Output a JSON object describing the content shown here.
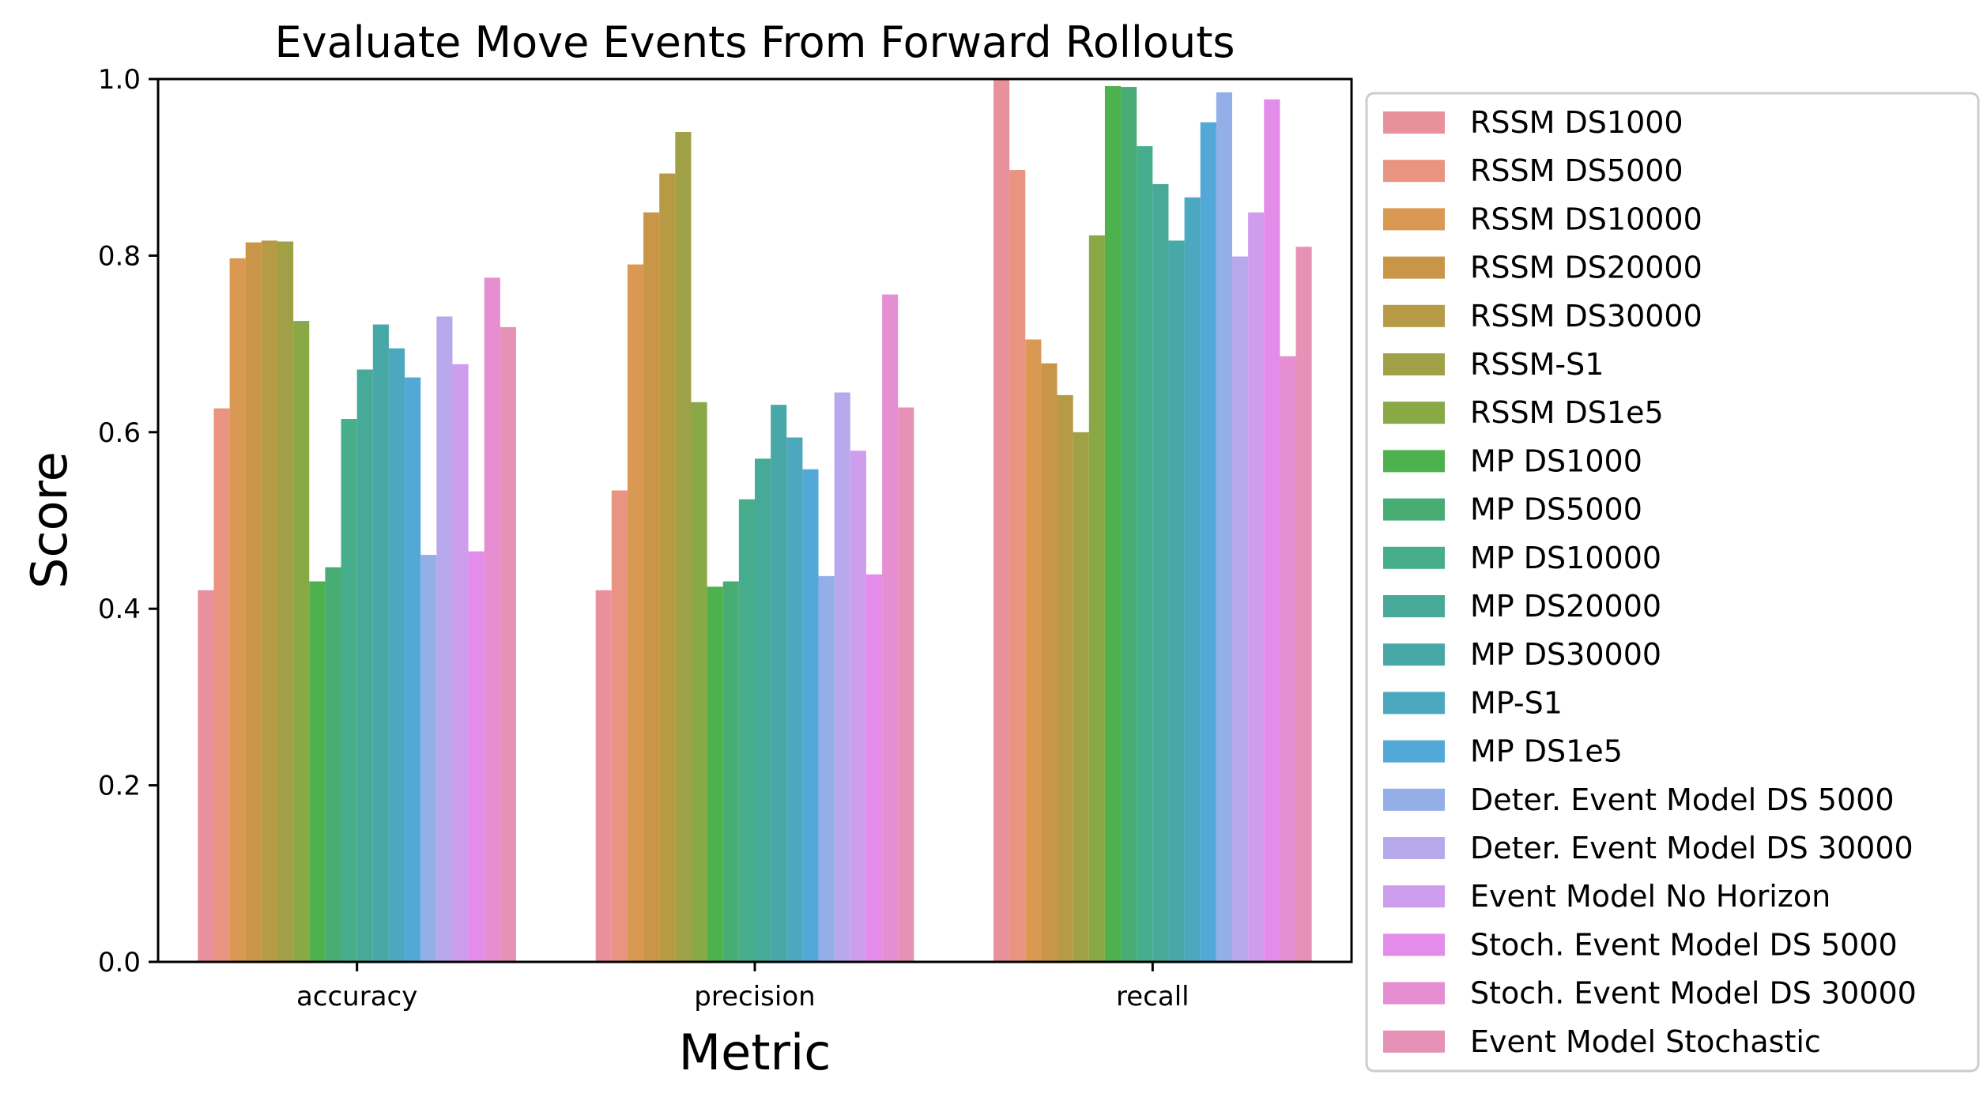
{
  "chart_data": {
    "type": "bar",
    "title": "Evaluate Move Events From Forward Rollouts",
    "xlabel": "Metric",
    "ylabel": "Score",
    "ylim": [
      0.0,
      1.0
    ],
    "yticks": [
      "0.0",
      "0.2",
      "0.4",
      "0.6",
      "0.8",
      "1.0"
    ],
    "grid": false,
    "legend_position": "right-outside",
    "categories": [
      "accuracy",
      "precision",
      "recall"
    ],
    "series": [
      {
        "name": "RSSM DS1000",
        "color": "#e8909b",
        "values": [
          0.421,
          0.421,
          1.0
        ]
      },
      {
        "name": "RSSM DS5000",
        "color": "#e99481",
        "values": [
          0.627,
          0.534,
          0.897
        ]
      },
      {
        "name": "RSSM DS10000",
        "color": "#d99952",
        "values": [
          0.797,
          0.79,
          0.705
        ]
      },
      {
        "name": "RSSM DS20000",
        "color": "#c99648",
        "values": [
          0.815,
          0.849,
          0.678
        ]
      },
      {
        "name": "RSSM DS30000",
        "color": "#b69b44",
        "values": [
          0.817,
          0.893,
          0.642
        ]
      },
      {
        "name": "RSSM-S1",
        "color": "#a0a146",
        "values": [
          0.816,
          0.94,
          0.6
        ]
      },
      {
        "name": "RSSM DS1e5",
        "color": "#89a846",
        "values": [
          0.726,
          0.634,
          0.823
        ]
      },
      {
        "name": "MP DS1000",
        "color": "#4db24d",
        "values": [
          0.431,
          0.425,
          0.992
        ]
      },
      {
        "name": "MP DS5000",
        "color": "#47ad74",
        "values": [
          0.447,
          0.431,
          0.991
        ]
      },
      {
        "name": "MP DS10000",
        "color": "#47ae8d",
        "values": [
          0.615,
          0.524,
          0.924
        ]
      },
      {
        "name": "MP DS20000",
        "color": "#47aa99",
        "values": [
          0.671,
          0.57,
          0.881
        ]
      },
      {
        "name": "MP DS30000",
        "color": "#48a8a8",
        "values": [
          0.722,
          0.631,
          0.817
        ]
      },
      {
        "name": "MP-S1",
        "color": "#4ba8bf",
        "values": [
          0.695,
          0.594,
          0.866
        ]
      },
      {
        "name": "MP DS1e5",
        "color": "#52a9d8",
        "values": [
          0.662,
          0.558,
          0.951
        ]
      },
      {
        "name": "Deter. Event Model DS 5000",
        "color": "#94aee8",
        "values": [
          0.461,
          0.437,
          0.985
        ]
      },
      {
        "name": "Deter. Event Model DS 30000",
        "color": "#b8a8ec",
        "values": [
          0.731,
          0.645,
          0.799
        ]
      },
      {
        "name": "Event Model No Horizon",
        "color": "#cf9ded",
        "values": [
          0.677,
          0.579,
          0.849
        ]
      },
      {
        "name": "Stoch. Event Model DS 5000",
        "color": "#e38cea",
        "values": [
          0.465,
          0.439,
          0.977
        ]
      },
      {
        "name": "Stoch. Event Model DS 30000",
        "color": "#e68ed2",
        "values": [
          0.775,
          0.756,
          0.686
        ]
      },
      {
        "name": "Event Model Stochastic",
        "color": "#e592b6",
        "values": [
          0.719,
          0.628,
          0.81
        ]
      }
    ]
  }
}
